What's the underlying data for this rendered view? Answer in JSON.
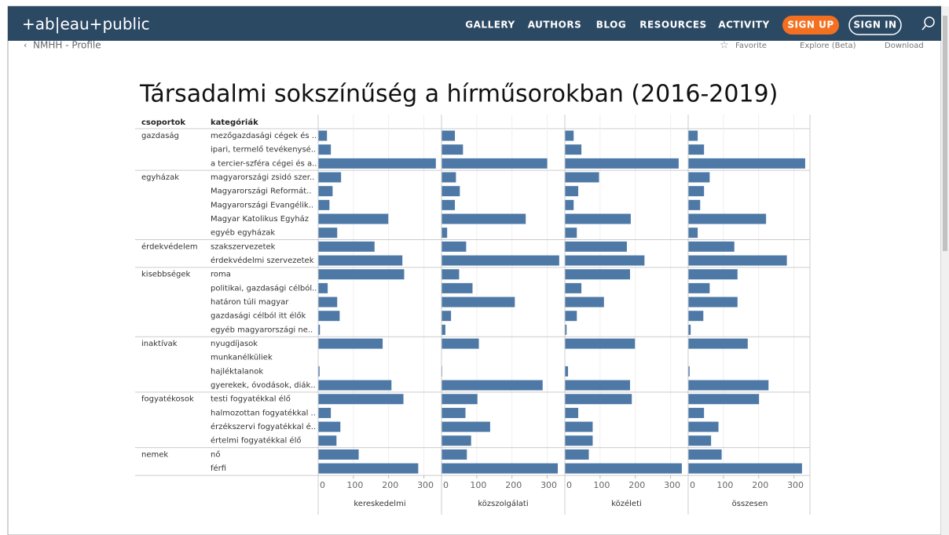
{
  "nav": {
    "logo": "+ab|eau+public",
    "items": [
      "GALLERY",
      "AUTHORS",
      "BLOG",
      "RESOURCES",
      "ACTIVITY"
    ],
    "sign_up": "SIGN UP",
    "sign_in": "SIGN IN"
  },
  "breadcrumb": "NMHH - Profile",
  "toolbar": [
    "Favorite",
    "Explore (Beta)",
    "Download"
  ],
  "chart_data": {
    "type": "bar",
    "title": "Társadalmi sokszínűség a hírműsorokban (2016-2019)",
    "group_header": "csoportok",
    "category_header": "kategóriák",
    "row_groups": [
      "gazdaság",
      null,
      null,
      "egyházak",
      null,
      null,
      null,
      null,
      "érdekvédelem",
      null,
      "kisebbségek",
      null,
      null,
      null,
      null,
      "inaktívak",
      null,
      null,
      null,
      "fogyatékosok",
      null,
      null,
      null,
      "nemek",
      null
    ],
    "categories": [
      "mezőgazdasági cégek és ..",
      "ipari, termelő tevékenysé..",
      "a tercier-szféra cégei és a..",
      "magyarországi zsidó szer..",
      "Magyarországi Reformát..",
      "Magyarországi Evangélik..",
      "Magyar Katolikus Egyház",
      "egyéb egyházak",
      "szakszervezetek",
      "érdekvédelmi szervezetek",
      "roma",
      "politikai, gazdasági célból..",
      "határon túli magyar",
      "gazdasági célból itt élők",
      "egyéb magyarországi ne..",
      "nyugdíjasok",
      "munkanélküliek",
      "hajléktalanok",
      "gyerekek, óvodások, diák..",
      "testi fogyatékkal élő",
      "halmozottan fogyatékkal ..",
      "érzékszervi fogyatékkal é..",
      "értelmi fogyatékkal élő",
      "nő",
      "férfi"
    ],
    "series": [
      {
        "name": "kereskedelmi",
        "color": "#4e79a7",
        "values": [
          25,
          36,
          334,
          65,
          41,
          32,
          199,
          54,
          160,
          239,
          244,
          27,
          54,
          61,
          5,
          183,
          0,
          4,
          208,
          242,
          36,
          63,
          52,
          115,
          284
        ]
      },
      {
        "name": "közszolgálati",
        "color": "#4e79a7",
        "values": [
          38,
          61,
          300,
          41,
          52,
          38,
          239,
          16,
          70,
          334,
          50,
          88,
          208,
          27,
          11,
          106,
          0,
          2,
          287,
          102,
          68,
          138,
          84,
          72,
          330
        ]
      },
      {
        "name": "közéleti",
        "color": "#4e79a7",
        "values": [
          25,
          47,
          323,
          97,
          38,
          25,
          187,
          34,
          176,
          226,
          185,
          47,
          111,
          34,
          5,
          199,
          0,
          9,
          185,
          190,
          38,
          79,
          79,
          68,
          332
        ]
      },
      {
        "name": "összesen",
        "color": "#4e79a7",
        "values": [
          27,
          45,
          332,
          61,
          45,
          34,
          221,
          27,
          131,
          280,
          140,
          61,
          140,
          43,
          7,
          169,
          0,
          4,
          228,
          201,
          45,
          86,
          65,
          95,
          323
        ]
      }
    ],
    "xlim": [
      0,
      350
    ],
    "xticks": [
      0,
      100,
      200,
      300
    ],
    "grid": true
  }
}
